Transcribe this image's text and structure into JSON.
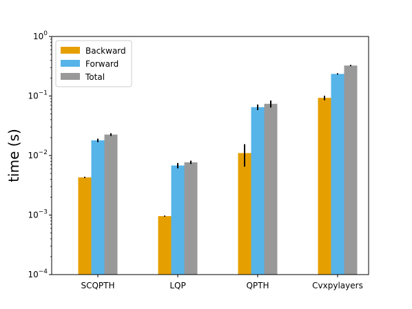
{
  "chart_data": {
    "type": "bar",
    "categories": [
      "SCQPTH",
      "LQP",
      "QPTH",
      "Cvxpylayers"
    ],
    "series": [
      {
        "name": "Backward",
        "color": "#e69f00",
        "values": [
          0.0043,
          0.00096,
          0.011,
          0.093
        ],
        "errors": [
          0.0001,
          2e-05,
          0.0045,
          0.008
        ]
      },
      {
        "name": "Forward",
        "color": "#56b4e9",
        "values": [
          0.018,
          0.0068,
          0.065,
          0.235
        ],
        "errors": [
          0.0012,
          0.0007,
          0.007,
          0.006
        ]
      },
      {
        "name": "Total",
        "color": "#999999",
        "values": [
          0.0225,
          0.0077,
          0.074,
          0.325
        ],
        "errors": [
          0.0012,
          0.0005,
          0.01,
          0.008
        ]
      }
    ],
    "title": "",
    "xlabel": "",
    "ylabel": "time (s)",
    "yscale": "log",
    "ylim": [
      0.0001,
      1
    ],
    "yticks": [
      {
        "base": "10",
        "exp": "0",
        "value": 1
      },
      {
        "base": "10",
        "exp": "−1",
        "value": 0.1
      },
      {
        "base": "10",
        "exp": "−2",
        "value": 0.01
      },
      {
        "base": "10",
        "exp": "−3",
        "value": 0.001
      },
      {
        "base": "10",
        "exp": "−4",
        "value": 0.0001
      }
    ],
    "grid": false,
    "legend_position": "upper-left"
  }
}
